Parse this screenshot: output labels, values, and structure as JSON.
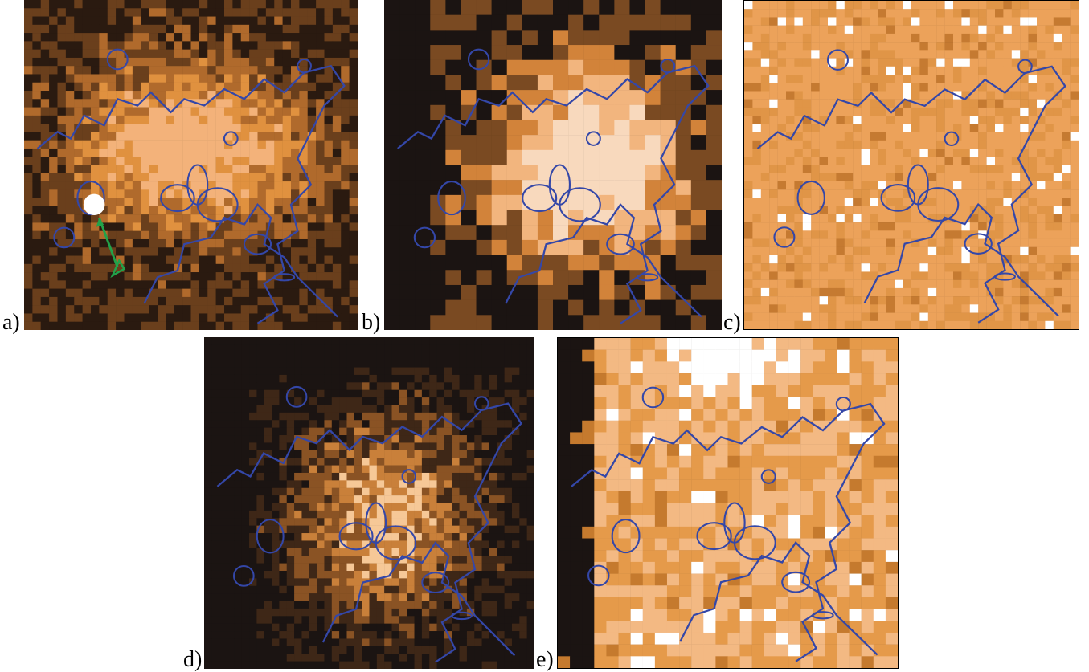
{
  "panels": [
    {
      "id": "a",
      "label": "a)",
      "palette": [
        "#2a1a10",
        "#6a3f1c",
        "#b06a2c",
        "#e0913f",
        "#f3b27a"
      ],
      "has_bright_source": true
    },
    {
      "id": "b",
      "label": "b)",
      "palette": [
        "#1b1412",
        "#7a4a22",
        "#d2833a",
        "#f2b57e",
        "#f8d9bd"
      ],
      "has_bright_source": false
    },
    {
      "id": "c",
      "label": "c)",
      "palette": [
        "#c57a31",
        "#e09547",
        "#eca25a",
        "#f3b47a",
        "#ffffff"
      ],
      "has_bright_source": false
    },
    {
      "id": "d",
      "label": "d)",
      "palette": [
        "#1b1412",
        "#3e2717",
        "#8a5324",
        "#c9803a",
        "#f6c897"
      ],
      "has_bright_source": false
    },
    {
      "id": "e",
      "label": "e)",
      "palette": [
        "#1b1412",
        "#c57a2e",
        "#e59a4a",
        "#f3b983",
        "#ffffff"
      ],
      "has_bright_source": false
    }
  ],
  "colors": {
    "contour": "#3447a8",
    "arrow": "#22a24a",
    "background": "#ffffff"
  }
}
